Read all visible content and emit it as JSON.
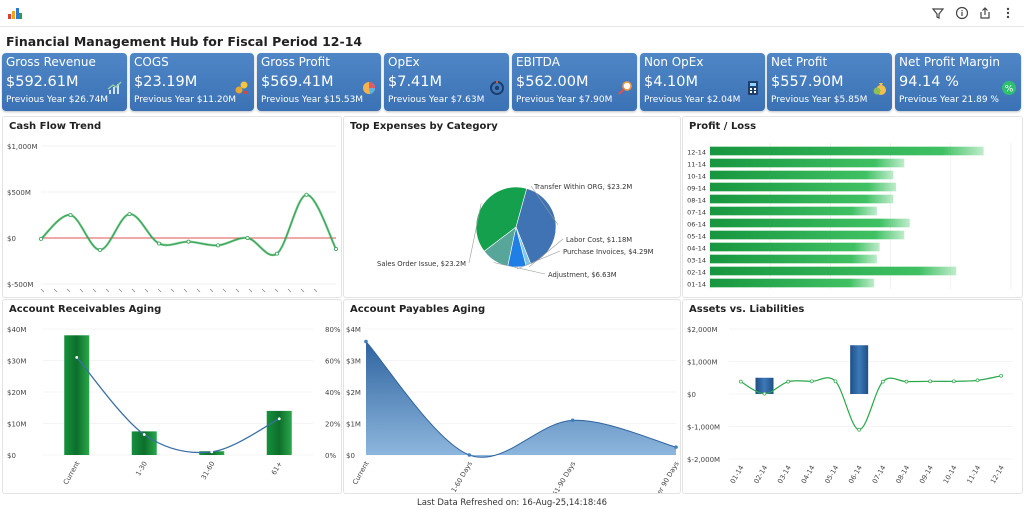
{
  "header": {
    "title": "Financial Management Hub for Fiscal Period 12-14"
  },
  "toolbar": {
    "icons": [
      "filter-icon",
      "info-icon",
      "share-icon",
      "more-icon"
    ]
  },
  "kpis": [
    {
      "label": "Gross Revenue",
      "value": "$592.61M",
      "previous": "Previous Year $26.74M",
      "icon": "growth-icon"
    },
    {
      "label": "COGS",
      "value": "$23.19M",
      "previous": "Previous Year $11.20M",
      "icon": "coins-icon"
    },
    {
      "label": "Gross Profit",
      "value": "$569.41M",
      "previous": "Previous Year $15.53M",
      "icon": "pie-icon"
    },
    {
      "label": "OpEx",
      "value": "$7.41M",
      "previous": "Previous Year $7.63M",
      "icon": "gear-icon"
    },
    {
      "label": "EBITDA",
      "value": "$562.00M",
      "previous": "Previous Year $7.90M",
      "icon": "magnifier-icon"
    },
    {
      "label": "Non OpEx",
      "value": "$4.10M",
      "previous": "Previous Year $2.04M",
      "icon": "calculator-icon"
    },
    {
      "label": "Net Profit",
      "value": "$557.90M",
      "previous": "Previous Year $5.85M",
      "icon": "money-bag-icon"
    },
    {
      "label": "Net Profit Margin",
      "value": "94.14 %",
      "previous": "Previous Year 21.89 %",
      "icon": "percent-icon"
    }
  ],
  "panels": {
    "cash_flow": "Cash Flow Trend",
    "top_expenses": "Top Expenses by Category",
    "profit_loss": "Profit / Loss",
    "ar_aging": "Account Receivables Aging",
    "ap_aging": "Account Payables Aging",
    "assets_liabilities": "Assets vs. Liabilities"
  },
  "footer": {
    "text": "Last Data Refreshed on: 16-Aug-25,14:18:46"
  },
  "colors": {
    "kpi_bg": "#4a80c2",
    "green": "#2aa84a",
    "blue": "#3a6ea8",
    "line": "#3b6fa6",
    "zero_line": "#e05050"
  },
  "chart_data": [
    {
      "id": "cash_flow",
      "type": "line",
      "title": "Cash Flow Trend",
      "y_ticks": [
        "$1,000M",
        "$500M",
        "$0",
        "$-500M"
      ],
      "ylim": [
        -500,
        1000
      ],
      "values": [
        -10,
        250,
        -130,
        260,
        -60,
        -40,
        -80,
        0,
        -170,
        470,
        -120
      ],
      "grid": true
    },
    {
      "id": "top_expenses",
      "type": "pie",
      "title": "Top Expenses by Category",
      "slices": [
        {
          "label": "Transfer Within ORG, $23.2M",
          "value": 23.2,
          "color": "#3f73b3"
        },
        {
          "label": "Labor Cost, $1.18M",
          "value": 1.18,
          "color": "#7fc8ea"
        },
        {
          "label": "Purchase Invoices, $4.29M",
          "value": 4.29,
          "color": "#1f7fe6"
        },
        {
          "label": "Adjustment, $6.63M",
          "value": 6.63,
          "color": "#58a69a"
        },
        {
          "label": "Sales Order Issue, $23.2M",
          "value": 23.2,
          "color": "#15a04e"
        }
      ]
    },
    {
      "id": "profit_loss",
      "type": "bar",
      "title": "Profit / Loss",
      "categories": [
        "12-14",
        "11-14",
        "10-14",
        "09-14",
        "08-14",
        "07-14",
        "06-14",
        "05-14",
        "04-14",
        "03-14",
        "02-14",
        "01-14"
      ],
      "values": [
        100,
        71,
        67,
        68,
        67,
        61,
        73,
        71,
        62,
        61,
        90,
        60
      ],
      "xlim": [
        0,
        110
      ],
      "grid": true
    },
    {
      "id": "ar_aging",
      "type": "bar",
      "title": "Account Receivables Aging",
      "categories": [
        "Current",
        "1-30",
        "31-60",
        "61+"
      ],
      "values": [
        38,
        7.5,
        1.2,
        14
      ],
      "line_values": [
        62,
        13,
        2,
        23
      ],
      "y_ticks": [
        "$40M",
        "$30M",
        "$20M",
        "$10M",
        "$0"
      ],
      "y2_ticks": [
        "80%",
        "60%",
        "40%",
        "20%",
        "0%"
      ],
      "ylim": [
        0,
        40
      ],
      "y2lim": [
        0,
        80
      ]
    },
    {
      "id": "ap_aging",
      "type": "area",
      "title": "Account Payables Aging",
      "categories": [
        "Current",
        "1-60 Days",
        "61-90 Days",
        "Over 90 Days"
      ],
      "values": [
        3.6,
        0,
        1.1,
        0.25
      ],
      "y_ticks": [
        "$4M",
        "$3M",
        "$2M",
        "$1M",
        "$0"
      ],
      "ylim": [
        0,
        4
      ]
    },
    {
      "id": "assets_liabilities",
      "type": "bar",
      "title": "Assets vs. Liabilities",
      "categories": [
        "01-14",
        "02-14",
        "03-14",
        "04-14",
        "05-14",
        "06-14",
        "07-14",
        "08-14",
        "09-14",
        "10-14",
        "11-14",
        "12-14"
      ],
      "bar_values": [
        0,
        500,
        0,
        0,
        0,
        1500,
        0,
        0,
        0,
        0,
        0,
        0
      ],
      "line_values": [
        380,
        10,
        380,
        390,
        390,
        -1100,
        380,
        380,
        390,
        390,
        420,
        560
      ],
      "y_ticks": [
        "$2,000M",
        "$1,000M",
        "$0",
        "$-1,000M",
        "$-2,000M"
      ],
      "ylim": [
        -2000,
        2000
      ]
    }
  ]
}
